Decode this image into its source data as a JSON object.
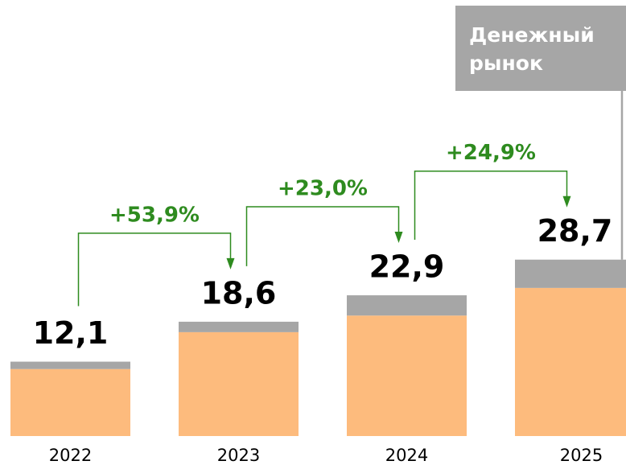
{
  "chart_data": {
    "type": "stacked-bar",
    "categories": [
      "2022",
      "2023",
      "2024",
      "2025"
    ],
    "series": [
      {
        "color": "#fdbb7d",
        "values": [
          10.9,
          16.9,
          19.6,
          24.1
        ]
      },
      {
        "name": "Денежный рынок",
        "color": "#a6a6a6",
        "values": [
          1.2,
          1.7,
          3.3,
          4.6
        ]
      }
    ],
    "totals": [
      12.1,
      18.6,
      22.9,
      28.7
    ],
    "total_labels": [
      "12,1",
      "18,6",
      "22,9",
      "28,7"
    ],
    "annotations": [
      "+53,9%",
      "+23,0%",
      "+24,9%"
    ],
    "annotation_color": "#2e8b1f",
    "ylim": [
      0,
      40
    ]
  }
}
